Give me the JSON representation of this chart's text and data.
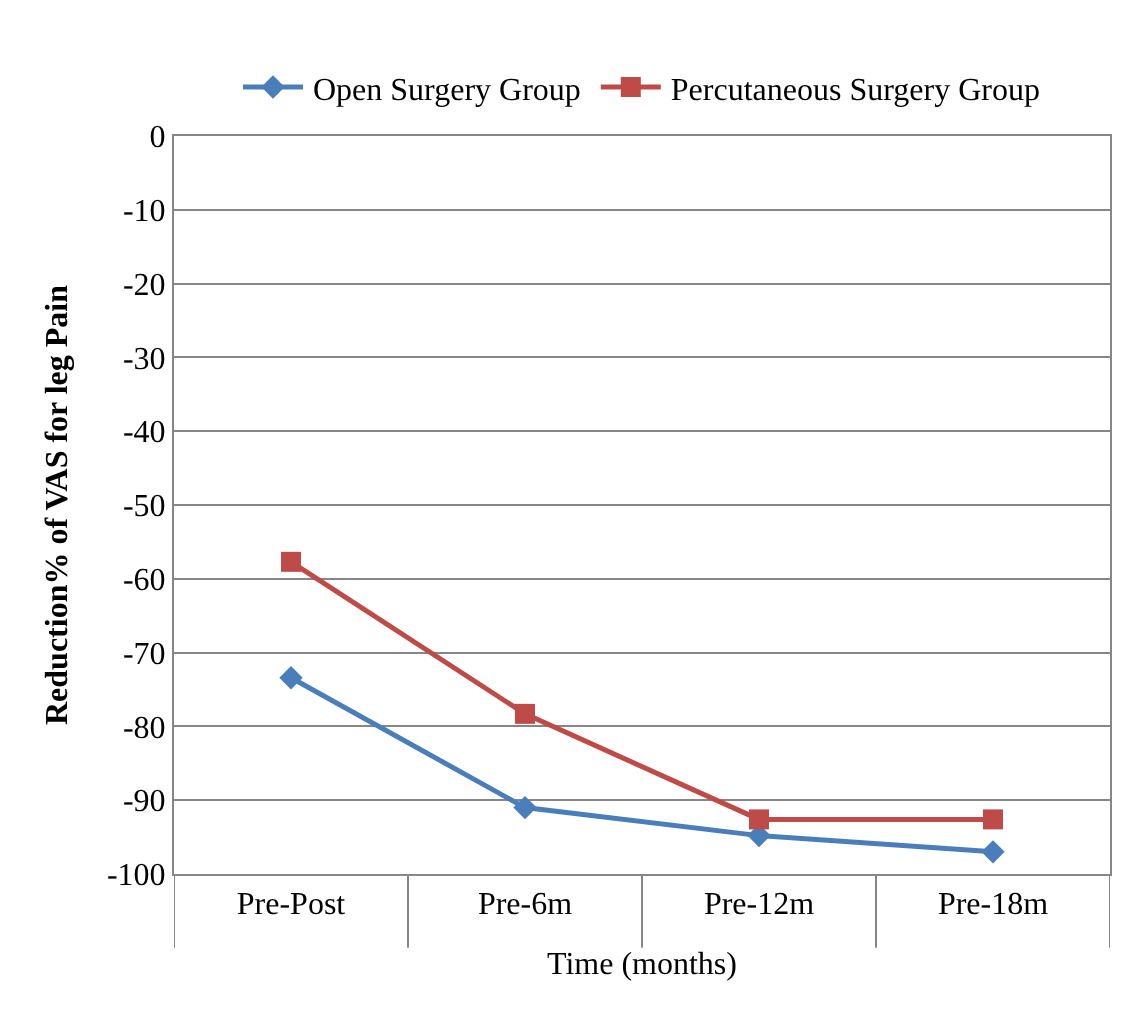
{
  "chart_data": {
    "type": "line",
    "xlabel": "Time (months)",
    "ylabel": "Reduction% of VAS for leg Pain",
    "categories": [
      "Pre-Post",
      "Pre-6m",
      "Pre-12m",
      "Pre-18m"
    ],
    "series": [
      {
        "name": "Open Surgery Group",
        "color": "#4a7ebb",
        "values": [
          -73.4,
          -91,
          -94.8,
          -97
        ],
        "marker": "diamond"
      },
      {
        "name": "Percutaneous Surgery Group",
        "color": "#be4b48",
        "values": [
          -57.7,
          -78.3,
          -92.6,
          -92.6
        ],
        "marker": "square"
      }
    ],
    "ylim": [
      -100,
      0
    ],
    "yticks": [
      0,
      -10,
      -20,
      -30,
      -40,
      -50,
      -60,
      -70,
      -80,
      -90,
      -100
    ],
    "grid": "y",
    "legend": "top",
    "line_style": "solid"
  }
}
